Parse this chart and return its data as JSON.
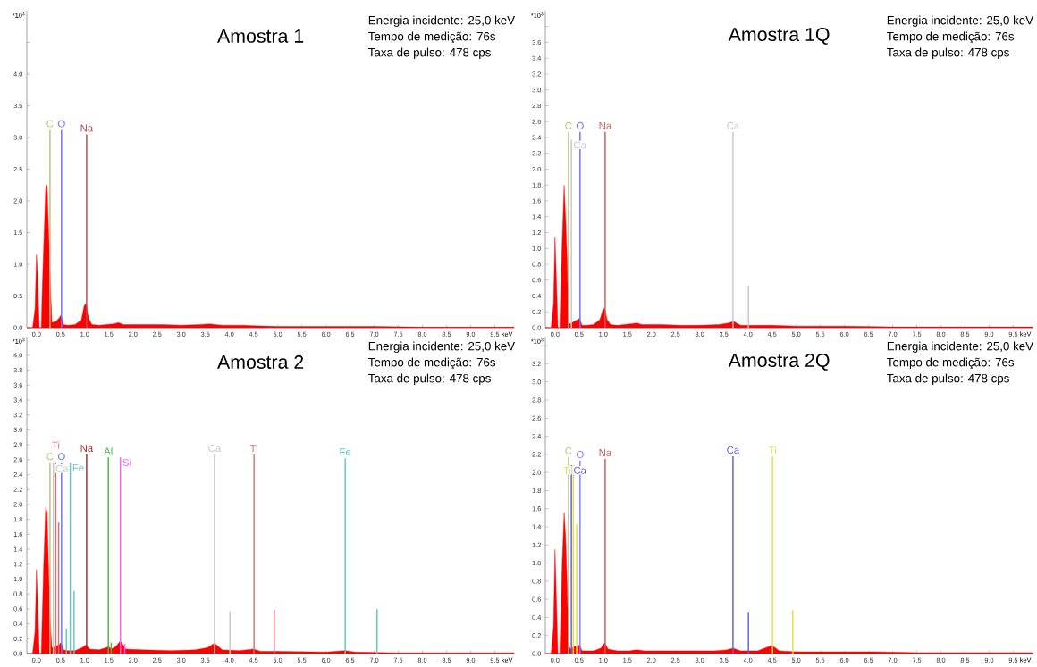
{
  "chart_data": [
    {
      "type": "area",
      "title": "Amostra 1",
      "xlabel": "keV",
      "ylabel": "*10$^{3}$",
      "annotations": [
        "Energia incidente: 25,0 keV",
        "Tempo de medição: 76s",
        "Taxa de pulso: 478 cps"
      ],
      "xlim": [
        -0.2,
        9.9
      ],
      "ylim": [
        0,
        5.0
      ],
      "xticks": [
        {
          "value": 0,
          "label": "0.0"
        },
        0.5,
        {
          "value": 1,
          "label": "1.0"
        },
        1.5,
        {
          "value": 2,
          "label": "2.0"
        },
        2.5,
        {
          "value": 3,
          "label": "3.0"
        },
        3.5,
        {
          "value": 4,
          "label": "4.0"
        },
        4.5,
        {
          "value": 5,
          "label": "5.0"
        },
        5.5,
        {
          "value": 6,
          "label": "6.0"
        },
        6.5,
        {
          "value": 7,
          "label": "7.0"
        },
        7.5,
        {
          "value": 8,
          "label": "8.0"
        },
        8.5,
        {
          "value": 9,
          "label": "9.0"
        },
        9.5
      ],
      "yticks": [
        {
          "value": 0,
          "label": "0.0"
        },
        0.5,
        {
          "value": 1,
          "label": "1.0"
        },
        1.5,
        {
          "value": 2,
          "label": "2.0"
        },
        2.5,
        {
          "value": 3,
          "label": "3.0"
        },
        3.5,
        {
          "value": 4,
          "label": "4.0"
        },
        {
          "value": 4.5,
          "label": null
        }
      ],
      "series": [
        {
          "color": "#ff0000",
          "x": [
            -0.2,
            -0.08,
            -0.03,
            0.0,
            0.02,
            0.06,
            0.1,
            0.12,
            0.15,
            0.19,
            0.22,
            0.25,
            0.28,
            0.32,
            0.4,
            0.47,
            0.51,
            0.56,
            0.65,
            0.8,
            0.93,
            0.99,
            1.03,
            1.08,
            1.15,
            1.3,
            1.6,
            1.7,
            1.8,
            2.2,
            2.6,
            3.0,
            3.4,
            3.6,
            3.7,
            3.85,
            4.3,
            4.5,
            5.0,
            6.0,
            7.0,
            8.0,
            9.0,
            9.9
          ],
          "values": [
            0,
            0,
            0.3,
            1.15,
            0.9,
            0,
            0,
            0.6,
            1.3,
            2.2,
            2.25,
            1.6,
            0.9,
            0.08,
            0.1,
            0.15,
            0.2,
            0.05,
            0.04,
            0.05,
            0.12,
            0.35,
            0.38,
            0.15,
            0.05,
            0.04,
            0.06,
            0.08,
            0.05,
            0.05,
            0.05,
            0.04,
            0.05,
            0.06,
            0.05,
            0.04,
            0.04,
            0.03,
            0.02,
            0.02,
            0.02,
            0.01,
            0.01,
            0.01
          ]
        },
        {
          "name": "C",
          "type": "bar",
          "color": "#c0c080",
          "x": [
            0.28
          ],
          "values": [
            3.12
          ]
        },
        {
          "name": "O",
          "type": "bar",
          "color": "#7070ff",
          "x": [
            0.52
          ],
          "values": [
            3.12
          ]
        },
        {
          "name": "Na",
          "type": "bar",
          "color": "#b05050",
          "x": [
            1.04
          ],
          "values": [
            3.05
          ]
        }
      ]
    },
    {
      "type": "area",
      "title": "Amostra 1Q",
      "xlabel": "keV",
      "ylabel": "*10$^{3}$",
      "annotations": [
        "Energia incidente: 25,0 keV",
        "Tempo de medição: 76s",
        "Taxa de pulso: 478 cps"
      ],
      "xlim": [
        -0.2,
        9.9
      ],
      "ylim": [
        0,
        4.0
      ],
      "xticks": [
        {
          "value": 0,
          "label": "0.0"
        },
        0.5,
        {
          "value": 1,
          "label": "1.0"
        },
        1.5,
        {
          "value": 2,
          "label": "2.0"
        },
        2.5,
        {
          "value": 3,
          "label": "3.0"
        },
        3.5,
        {
          "value": 4,
          "label": "4.0"
        },
        4.5,
        {
          "value": 5,
          "label": "5.0"
        },
        5.5,
        {
          "value": 6,
          "label": "6.0"
        },
        6.5,
        {
          "value": 7,
          "label": "7.0"
        },
        7.5,
        {
          "value": 8,
          "label": "8.0"
        },
        8.5,
        {
          "value": 9,
          "label": "9.0"
        },
        9.5
      ],
      "yticks": [
        {
          "value": 0,
          "label": "0.0"
        },
        0.2,
        0.4,
        0.6,
        0.8,
        {
          "value": 1,
          "label": "1.0"
        },
        1.2,
        1.4,
        1.6,
        1.8,
        {
          "value": 2,
          "label": "2.0"
        },
        2.2,
        2.4,
        2.6,
        2.8,
        {
          "value": 3,
          "label": "3.0"
        },
        3.2,
        3.4,
        3.6,
        {
          "value": 3.8,
          "label": null
        }
      ],
      "series": [
        {
          "color": "#ff0000",
          "x": [
            -0.2,
            -0.08,
            -0.03,
            0.0,
            0.02,
            0.06,
            0.1,
            0.12,
            0.15,
            0.19,
            0.22,
            0.25,
            0.28,
            0.32,
            0.4,
            0.47,
            0.51,
            0.56,
            0.65,
            0.8,
            0.93,
            0.99,
            1.03,
            1.08,
            1.15,
            1.3,
            1.6,
            1.7,
            1.8,
            2.2,
            2.6,
            3.0,
            3.4,
            3.6,
            3.7,
            3.85,
            4.3,
            4.5,
            5.0,
            6.0,
            7.0,
            8.0,
            9.0,
            9.9
          ],
          "values": [
            0,
            0,
            0.3,
            1.15,
            0.8,
            0,
            0,
            0.5,
            1.1,
            1.8,
            1.4,
            0.9,
            0.05,
            0.05,
            0.08,
            0.1,
            0.12,
            0.03,
            0.03,
            0.04,
            0.1,
            0.22,
            0.25,
            0.1,
            0.04,
            0.03,
            0.05,
            0.06,
            0.04,
            0.04,
            0.03,
            0.03,
            0.04,
            0.06,
            0.08,
            0.03,
            0.03,
            0.03,
            0.02,
            0.02,
            0.01,
            0.01,
            0.01,
            0.01
          ]
        },
        {
          "name": "C",
          "type": "bar",
          "color": "#c0c080",
          "x": [
            0.28
          ],
          "values": [
            2.47
          ]
        },
        {
          "name": "Ca",
          "type": "bar",
          "color": "#c8c8c8",
          "x": [
            0.34
          ],
          "values": [
            2.37
          ]
        },
        {
          "name": "O",
          "type": "bar",
          "color": "#7070ff",
          "x": [
            0.52
          ],
          "values": [
            2.47
          ]
        },
        {
          "name": "Na",
          "type": "bar",
          "color": "#c06060",
          "x": [
            1.04
          ],
          "values": [
            2.47
          ]
        },
        {
          "name": "Ca",
          "type": "bar",
          "color": "#c8c8c8",
          "x": [
            3.69,
            4.01
          ],
          "values": [
            2.47,
            0.53
          ]
        }
      ]
    },
    {
      "type": "area",
      "title": "Amostra 2",
      "xlabel": "keV",
      "ylabel": "*10$^{3}$",
      "annotations": [
        "Energia incidente: 25,0 keV",
        "Tempo de medição: 76s",
        "Taxa de pulso: 478 cps"
      ],
      "xlim": [
        -0.2,
        9.9
      ],
      "ylim": [
        0,
        4.25
      ],
      "xticks": [
        {
          "value": 0,
          "label": "0.0"
        },
        0.5,
        {
          "value": 1,
          "label": "1.0"
        },
        1.5,
        {
          "value": 2,
          "label": "2.0"
        },
        2.5,
        {
          "value": 3,
          "label": "3.0"
        },
        3.5,
        {
          "value": 4,
          "label": "4.0"
        },
        4.5,
        {
          "value": 5,
          "label": "5.0"
        },
        5.5,
        {
          "value": 6,
          "label": "6.0"
        },
        6.5,
        {
          "value": 7,
          "label": "7.0"
        },
        7.5,
        {
          "value": 8,
          "label": "8.0"
        },
        8.5,
        {
          "value": 9,
          "label": "9.0"
        },
        9.5
      ],
      "yticks": [
        {
          "value": 0,
          "label": "0.0"
        },
        0.2,
        0.4,
        0.6,
        0.8,
        {
          "value": 1,
          "label": "1.0"
        },
        1.2,
        1.4,
        1.6,
        1.8,
        {
          "value": 2,
          "label": "2.0"
        },
        2.2,
        2.4,
        2.6,
        2.8,
        {
          "value": 3,
          "label": "3.0"
        },
        3.2,
        3.4,
        3.6,
        3.8,
        {
          "value": 4,
          "label": "4.0"
        }
      ],
      "series": [
        {
          "color": "#ff0000",
          "x": [
            -0.2,
            -0.08,
            -0.03,
            0.0,
            0.02,
            0.06,
            0.1,
            0.12,
            0.15,
            0.19,
            0.22,
            0.25,
            0.28,
            0.32,
            0.4,
            0.47,
            0.51,
            0.56,
            0.65,
            0.8,
            0.95,
            1.03,
            1.1,
            1.3,
            1.45,
            1.49,
            1.55,
            1.65,
            1.74,
            1.85,
            2.2,
            2.8,
            3.3,
            3.55,
            3.69,
            3.85,
            4.2,
            4.5,
            4.65,
            5.0,
            6.0,
            6.4,
            6.6,
            7.5,
            8.5,
            9.9
          ],
          "values": [
            0,
            0,
            0.3,
            1.13,
            0.8,
            0,
            0,
            0.5,
            1.2,
            1.96,
            1.9,
            1.2,
            0.5,
            0.08,
            0.1,
            0.12,
            0.15,
            0.05,
            0.04,
            0.04,
            0.08,
            0.12,
            0.06,
            0.05,
            0.08,
            0.1,
            0.06,
            0.1,
            0.17,
            0.06,
            0.05,
            0.04,
            0.05,
            0.08,
            0.14,
            0.05,
            0.04,
            0.06,
            0.03,
            0.03,
            0.02,
            0.04,
            0.02,
            0.01,
            0.01,
            0.01
          ]
        },
        {
          "name": "Ti",
          "type": "bar",
          "color": "#e07070",
          "x": [
            0.4,
            0.46
          ],
          "values": [
            2.56,
            1.76
          ]
        },
        {
          "name": "C",
          "type": "bar",
          "color": "#c0c080",
          "x": [
            0.28
          ],
          "values": [
            2.56
          ]
        },
        {
          "name": "Ca",
          "type": "bar",
          "color": "#c8c8c8",
          "x": [
            0.35
          ],
          "values": [
            2.55
          ]
        },
        {
          "name": "O",
          "type": "bar",
          "color": "#7070ff",
          "x": [
            0.52
          ],
          "values": [
            2.56
          ]
        },
        {
          "name": "Fe",
          "type": "bar",
          "color": "#60c8c8",
          "x": [
            0.62,
            0.7,
            0.78
          ],
          "values": [
            0.34,
            2.56,
            0.84
          ]
        },
        {
          "name": "Na",
          "type": "bar",
          "color": "#a03030",
          "x": [
            1.04
          ],
          "values": [
            2.67
          ]
        },
        {
          "name": "Al",
          "type": "bar",
          "color": "#50b050",
          "x": [
            1.49,
            1.55
          ],
          "values": [
            2.63,
            0.15
          ]
        },
        {
          "name": "Si",
          "type": "bar",
          "color": "#ff60ff",
          "x": [
            1.74,
            1.83
          ],
          "values": [
            2.63,
            0.13
          ]
        },
        {
          "name": "Ca",
          "type": "bar",
          "color": "#c8c8c8",
          "x": [
            3.69,
            4.01
          ],
          "values": [
            2.67,
            0.57
          ]
        },
        {
          "name": "Ti",
          "type": "bar",
          "color": "#e07070",
          "x": [
            4.51,
            4.93
          ],
          "values": [
            2.67,
            0.59
          ]
        },
        {
          "name": "Fe",
          "type": "bar",
          "color": "#60c8c8",
          "x": [
            6.4,
            7.06
          ],
          "values": [
            2.62,
            0.6
          ]
        }
      ]
    },
    {
      "type": "area",
      "title": "Amostra 2Q",
      "xlabel": "keV",
      "ylabel": "*10$^{3}$",
      "annotations": [
        "Energia incidente: 25,0 keV",
        "Tempo de medição: 76s",
        "Taxa de pulso: 478 cps"
      ],
      "xlim": [
        -0.2,
        9.9
      ],
      "ylim": [
        0,
        3.5
      ],
      "xticks": [
        {
          "value": 0,
          "label": "0.0"
        },
        0.5,
        {
          "value": 1,
          "label": "1.0"
        },
        1.5,
        {
          "value": 2,
          "label": "2.0"
        },
        2.5,
        {
          "value": 3,
          "label": "3.0"
        },
        3.5,
        {
          "value": 4,
          "label": "4.0"
        },
        4.5,
        {
          "value": 5,
          "label": "5.0"
        },
        5.5,
        {
          "value": 6,
          "label": "6.0"
        },
        6.5,
        {
          "value": 7,
          "label": "7.0"
        },
        7.5,
        {
          "value": 8,
          "label": "8.0"
        },
        8.5,
        {
          "value": 9,
          "label": "9.0"
        },
        9.5
      ],
      "yticks": [
        {
          "value": 0,
          "label": "0.0"
        },
        0.2,
        0.4,
        0.6,
        0.8,
        {
          "value": 1,
          "label": "1.0"
        },
        1.2,
        1.4,
        1.6,
        1.8,
        {
          "value": 2,
          "label": "2.0"
        },
        2.2,
        2.4,
        2.6,
        2.8,
        {
          "value": 3,
          "label": "3.0"
        },
        3.2,
        {
          "value": 3.4,
          "label": null
        }
      ],
      "series": [
        {
          "color": "#ff0000",
          "x": [
            -0.2,
            -0.08,
            -0.03,
            0.0,
            0.02,
            0.06,
            0.1,
            0.12,
            0.15,
            0.19,
            0.22,
            0.25,
            0.28,
            0.32,
            0.4,
            0.47,
            0.51,
            0.56,
            0.65,
            0.8,
            0.95,
            1.03,
            1.1,
            1.3,
            1.45,
            1.49,
            1.55,
            1.65,
            1.74,
            1.85,
            2.2,
            2.8,
            3.3,
            3.55,
            3.69,
            3.85,
            4.2,
            4.5,
            4.65,
            5.0,
            6.0,
            6.4,
            6.6,
            7.5,
            8.5,
            9.9
          ],
          "values": [
            0,
            0,
            0.3,
            1.15,
            0.8,
            0,
            0,
            0.4,
            1.0,
            1.56,
            1.3,
            0.8,
            0.1,
            0.05,
            0.08,
            0.08,
            0.1,
            0.03,
            0.03,
            0.03,
            0.06,
            0.12,
            0.05,
            0.03,
            0.03,
            0.03,
            0.03,
            0.04,
            0.04,
            0.03,
            0.03,
            0.03,
            0.03,
            0.04,
            0.06,
            0.03,
            0.03,
            0.09,
            0.03,
            0.02,
            0.02,
            0.02,
            0.02,
            0.01,
            0.01,
            0.01
          ]
        },
        {
          "name": "Ti",
          "type": "bar",
          "color": "#e0e040",
          "x": [
            0.38,
            0.45
          ],
          "values": [
            2.08,
            1.43
          ]
        },
        {
          "name": "C",
          "type": "bar",
          "color": "#c0c080",
          "x": [
            0.28
          ],
          "values": [
            2.17
          ]
        },
        {
          "name": "Ca",
          "type": "bar",
          "color": "#6060e0",
          "x": [
            0.34
          ],
          "values": [
            2.08
          ]
        },
        {
          "name": "O",
          "type": "bar",
          "color": "#8080ff",
          "x": [
            0.52
          ],
          "values": [
            2.13
          ]
        },
        {
          "name": "Na",
          "type": "bar",
          "color": "#c06060",
          "x": [
            1.04
          ],
          "values": [
            2.15
          ]
        },
        {
          "name": "Ca",
          "type": "bar",
          "color": "#6060e0",
          "x": [
            3.69,
            4.01
          ],
          "values": [
            2.18,
            0.46
          ]
        },
        {
          "name": "Ti",
          "type": "bar",
          "color": "#e0e040",
          "x": [
            4.51,
            4.93
          ],
          "values": [
            2.18,
            0.48
          ]
        }
      ]
    }
  ]
}
